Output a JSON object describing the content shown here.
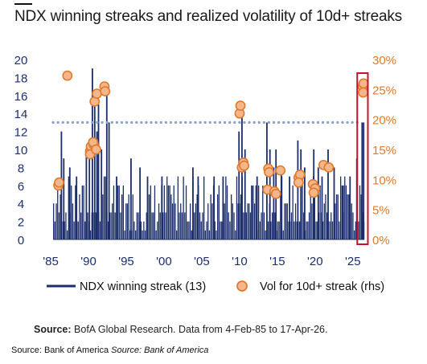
{
  "header": {
    "title": "NDX winning streaks and realized volatility of 10d+ streaks"
  },
  "footer": {
    "source_label": "Source:",
    "source_text": "BofA Global Research. Data from 4-Feb-85 to 17-Apr-26.",
    "credit_plain": "Source: Bank of America ",
    "credit_italic": "Source: Bank of America"
  },
  "colors": {
    "bar": "#1c2e6b",
    "dot_fill": "#f4b78c",
    "dot_stroke": "#e07a2e",
    "rhs_axis": "#e07a2e",
    "threshold": "#8aa2c8",
    "highlight": "#c0152f"
  },
  "chart_data": {
    "type": "bar",
    "x_ticks": [
      "'85",
      "'90",
      "'95",
      "'00",
      "'05",
      "'10",
      "'15",
      "'20",
      "'25"
    ],
    "x_tick_years": [
      1985,
      1990,
      1995,
      2000,
      2005,
      2010,
      2015,
      2020,
      2025
    ],
    "xlim": [
      1985.1,
      2026.3
    ],
    "ylim": [
      0,
      20
    ],
    "y_ticks": [
      "0",
      "2",
      "4",
      "6",
      "8",
      "10",
      "12",
      "14",
      "16",
      "18",
      "20"
    ],
    "y2lim": [
      0,
      30
    ],
    "y2_ticks": [
      "0%",
      "5%",
      "10%",
      "15%",
      "20%",
      "25%",
      "30%"
    ],
    "threshold_line": 13,
    "grid": false,
    "legend_position": "bottom",
    "highlight_box_years": [
      2025.9,
      2026.35
    ],
    "series": [
      {
        "name": "NDX winning streak (13)",
        "type": "bar",
        "axis": "left",
        "spikes": [
          {
            "year": 1986.2,
            "value": 12
          },
          {
            "year": 1986.5,
            "value": 9
          },
          {
            "year": 1987.3,
            "value": 8
          },
          {
            "year": 1988.2,
            "value": 7
          },
          {
            "year": 1989.5,
            "value": 10
          },
          {
            "year": 1989.9,
            "value": 11
          },
          {
            "year": 1990.3,
            "value": 19
          },
          {
            "year": 1990.6,
            "value": 16
          },
          {
            "year": 1990.9,
            "value": 12
          },
          {
            "year": 1991.1,
            "value": 15
          },
          {
            "year": 1991.5,
            "value": 10
          },
          {
            "year": 1992.2,
            "value": 17
          },
          {
            "year": 1992.5,
            "value": 13
          },
          {
            "year": 1993.5,
            "value": 7
          },
          {
            "year": 1995.4,
            "value": 9
          },
          {
            "year": 1996.6,
            "value": 8
          },
          {
            "year": 1997.6,
            "value": 7
          },
          {
            "year": 1999.5,
            "value": 7
          },
          {
            "year": 2003.6,
            "value": 8
          },
          {
            "year": 2004.3,
            "value": 7
          },
          {
            "year": 2006.4,
            "value": 7
          },
          {
            "year": 2007.6,
            "value": 7
          },
          {
            "year": 2009.7,
            "value": 12
          },
          {
            "year": 2010.1,
            "value": 15
          },
          {
            "year": 2010.5,
            "value": 10
          },
          {
            "year": 2011.4,
            "value": 6
          },
          {
            "year": 2012.1,
            "value": 7
          },
          {
            "year": 2013.4,
            "value": 13
          },
          {
            "year": 2013.8,
            "value": 10
          },
          {
            "year": 2014.3,
            "value": 8
          },
          {
            "year": 2014.6,
            "value": 10
          },
          {
            "year": 2015.3,
            "value": 8
          },
          {
            "year": 2016.4,
            "value": 7
          },
          {
            "year": 2017.5,
            "value": 11
          },
          {
            "year": 2017.9,
            "value": 10
          },
          {
            "year": 2018.4,
            "value": 8
          },
          {
            "year": 2019.6,
            "value": 10
          },
          {
            "year": 2020.2,
            "value": 8
          },
          {
            "year": 2020.7,
            "value": 7
          },
          {
            "year": 2021.5,
            "value": 10
          },
          {
            "year": 2022.3,
            "value": 8
          },
          {
            "year": 2023.5,
            "value": 6
          },
          {
            "year": 2024.4,
            "value": 7
          },
          {
            "year": 2025.3,
            "value": 9
          },
          {
            "year": 2026.0,
            "value": 13
          },
          {
            "year": 2026.2,
            "value": 13
          }
        ]
      },
      {
        "name": "Vol for 10d+ streak (rhs)",
        "type": "scatter",
        "axis": "right",
        "points": [
          {
            "year": 1985.8,
            "value": 9
          },
          {
            "year": 1985.9,
            "value": 9.5
          },
          {
            "year": 1987.0,
            "value": 27.3
          },
          {
            "year": 1990.0,
            "value": 14.7
          },
          {
            "year": 1990.1,
            "value": 15.5
          },
          {
            "year": 1990.0,
            "value": 14.2
          },
          {
            "year": 1990.5,
            "value": 15.8
          },
          {
            "year": 1990.4,
            "value": 16.2
          },
          {
            "year": 1990.8,
            "value": 15.0
          },
          {
            "year": 1990.6,
            "value": 23.0
          },
          {
            "year": 1990.9,
            "value": 24.3
          },
          {
            "year": 1991.9,
            "value": 25.5
          },
          {
            "year": 1992.0,
            "value": 24.7
          },
          {
            "year": 2009.8,
            "value": 21.0
          },
          {
            "year": 2009.9,
            "value": 22.3
          },
          {
            "year": 2010.1,
            "value": 12.0
          },
          {
            "year": 2010.3,
            "value": 12.8
          },
          {
            "year": 2010.4,
            "value": 12.3
          },
          {
            "year": 2013.6,
            "value": 11.8
          },
          {
            "year": 2013.7,
            "value": 11.2
          },
          {
            "year": 2013.5,
            "value": 8.3
          },
          {
            "year": 2014.4,
            "value": 8.0
          },
          {
            "year": 2014.6,
            "value": 7.6
          },
          {
            "year": 2015.2,
            "value": 11.5
          },
          {
            "year": 2017.6,
            "value": 10.3
          },
          {
            "year": 2017.8,
            "value": 10.8
          },
          {
            "year": 2017.6,
            "value": 9.5
          },
          {
            "year": 2019.5,
            "value": 9.2
          },
          {
            "year": 2019.8,
            "value": 8.5
          },
          {
            "year": 2019.6,
            "value": 7.8
          },
          {
            "year": 2020.9,
            "value": 12.4
          },
          {
            "year": 2021.6,
            "value": 12.0
          },
          {
            "year": 2026.1,
            "value": 25.5
          },
          {
            "year": 2026.2,
            "value": 26.0
          },
          {
            "year": 2026.15,
            "value": 24.5
          }
        ]
      }
    ]
  }
}
